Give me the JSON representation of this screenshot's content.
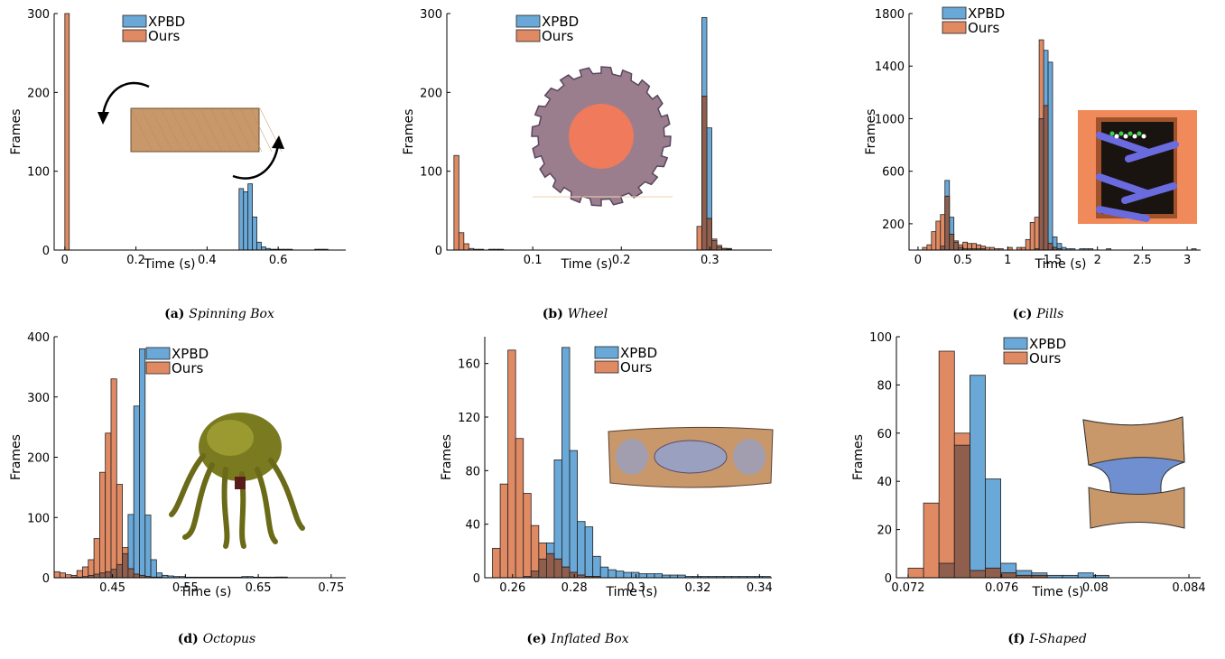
{
  "colors": {
    "xpbd": "#6aa8d8",
    "ours": "#e08a64",
    "overlap": "#8f5e4d",
    "edge": "#222222"
  },
  "chart_data": [
    {
      "id": "a",
      "type": "bar",
      "caption_label": "(a)",
      "caption_title": "Spinning Box",
      "xlabel": "Time (s)",
      "ylabel": "Frames",
      "xlim": [
        -0.03,
        0.79
      ],
      "ylim": [
        0,
        300
      ],
      "xticks": [
        0,
        0.2,
        0.4,
        0.6
      ],
      "xtick_labels": [
        "0",
        "0.2",
        "0.4",
        "0.6"
      ],
      "yticks": [
        0,
        100,
        200,
        300
      ],
      "ytick_labels": [
        "0",
        "100",
        "200",
        "300"
      ],
      "legend": [
        "XPBD",
        "Ours"
      ],
      "bin_start": 0.49,
      "bin_width": 0.0125,
      "xpbd": [
        78,
        74,
        84,
        42,
        10,
        4,
        2,
        1,
        1,
        1,
        1,
        1,
        0,
        0,
        0,
        0,
        0,
        1,
        1,
        1
      ],
      "ours_bin_start": 0.0,
      "ours_bin_width": 0.0125,
      "ours": [
        300
      ]
    },
    {
      "id": "b",
      "type": "bar",
      "caption_label": "(b)",
      "caption_title": "Wheel",
      "xlabel": "Time (s)",
      "ylabel": "Frames",
      "xlim": [
        0.003,
        0.37
      ],
      "ylim": [
        0,
        300
      ],
      "xticks": [
        0.1,
        0.2,
        0.3
      ],
      "xtick_labels": [
        "0.1",
        "0.2",
        "0.3"
      ],
      "yticks": [
        0,
        100,
        200,
        300
      ],
      "ytick_labels": [
        "0",
        "100",
        "200",
        "300"
      ],
      "legend": [
        "XPBD",
        "Ours"
      ],
      "bin_start": 0.011,
      "bin_width": 0.0056,
      "ours_full": [
        120,
        22,
        8,
        2,
        1,
        1,
        0,
        1,
        1,
        1,
        0,
        0,
        0,
        0,
        0,
        0,
        0,
        0,
        0,
        0,
        0,
        0,
        0,
        0,
        0,
        0,
        0,
        0,
        0,
        0,
        0,
        0,
        0,
        0,
        0,
        0,
        0,
        0,
        0,
        0,
        0,
        0,
        0,
        0,
        0,
        0,
        0,
        0,
        0,
        30,
        195,
        40,
        14,
        6,
        2,
        1
      ],
      "xpbd_full": [
        0,
        0,
        0,
        0,
        0,
        0,
        0,
        0,
        0,
        0,
        0,
        0,
        0,
        0,
        0,
        0,
        0,
        0,
        0,
        0,
        0,
        0,
        0,
        0,
        0,
        0,
        0,
        0,
        0,
        0,
        0,
        0,
        0,
        0,
        0,
        0,
        0,
        0,
        0,
        0,
        0,
        0,
        0,
        0,
        0,
        0,
        0,
        0,
        0,
        0,
        295,
        155,
        12,
        4,
        2,
        2
      ]
    },
    {
      "id": "c",
      "type": "bar",
      "caption_label": "(c)",
      "caption_title": "Pills",
      "xlabel": "Time (s)",
      "ylabel": "Frames",
      "xlim": [
        -0.1,
        3.15
      ],
      "ylim": [
        0,
        1800
      ],
      "xticks": [
        0,
        0.5,
        1,
        1.5,
        2,
        2.5,
        3
      ],
      "xtick_labels": [
        "0",
        "0.5",
        "1",
        "1.5",
        "2",
        "2.5",
        "3"
      ],
      "yticks": [
        200,
        600,
        1000,
        1400,
        1800
      ],
      "ytick_labels": [
        "200",
        "600",
        "1000",
        "1400",
        "1800"
      ],
      "legend": [
        "XPBD",
        "Ours"
      ],
      "bin_start": 0.0,
      "bin_width": 0.05,
      "ours": [
        0,
        20,
        40,
        140,
        220,
        270,
        410,
        120,
        70,
        40,
        60,
        50,
        50,
        40,
        30,
        20,
        20,
        10,
        10,
        0,
        20,
        0,
        20,
        20,
        80,
        210,
        250,
        1600,
        1100,
        50,
        20,
        10,
        0,
        0,
        0,
        0
      ],
      "xpbd": [
        0,
        0,
        0,
        0,
        0,
        30,
        530,
        250,
        60,
        20,
        10,
        10,
        10,
        10,
        10,
        0,
        0,
        0,
        0,
        0,
        0,
        0,
        0,
        0,
        0,
        0,
        10,
        1000,
        1520,
        1430,
        100,
        50,
        20,
        10,
        10,
        0,
        10,
        10,
        10,
        0,
        0,
        0,
        10,
        0,
        0,
        0,
        0,
        0,
        0,
        0,
        0,
        0,
        0,
        0,
        0,
        0,
        0,
        0,
        0,
        0,
        0,
        10
      ]
    },
    {
      "id": "d",
      "type": "bar",
      "caption_label": "(d)",
      "caption_title": "Octopus",
      "xlabel": "Time (s)",
      "ylabel": "Frames",
      "xlim": [
        0.37,
        0.77
      ],
      "ylim": [
        0,
        400
      ],
      "xticks": [
        0.45,
        0.55,
        0.65,
        0.75
      ],
      "xtick_labels": [
        "0.45",
        "0.55",
        "0.65",
        "0.75"
      ],
      "yticks": [
        0,
        100,
        200,
        300,
        400
      ],
      "ytick_labels": [
        "0",
        "100",
        "200",
        "300",
        "400"
      ],
      "legend": [
        "XPBD",
        "Ours"
      ],
      "bin_start": 0.37,
      "bin_width": 0.0078,
      "ours": [
        10,
        8,
        5,
        4,
        12,
        18,
        30,
        65,
        175,
        240,
        330,
        155,
        50,
        15,
        6,
        4,
        2,
        1,
        1,
        0,
        0,
        0,
        0,
        0,
        0,
        0,
        0,
        0,
        0,
        0,
        0,
        0,
        0,
        0,
        0,
        0,
        0,
        0,
        0,
        1,
        1
      ],
      "xpbd": [
        0,
        0,
        0,
        1,
        1,
        2,
        4,
        6,
        8,
        10,
        14,
        22,
        40,
        105,
        285,
        380,
        104,
        30,
        8,
        4,
        3,
        2,
        2,
        1,
        1,
        1,
        1,
        1,
        1,
        1,
        1,
        1,
        1,
        2,
        2,
        1,
        1,
        1,
        1,
        1,
        1
      ]
    },
    {
      "id": "e",
      "type": "bar",
      "caption_label": "(e)",
      "caption_title": "Inflated Box",
      "xlabel": "Time (s)",
      "ylabel": "Frames",
      "xlim": [
        0.251,
        0.344
      ],
      "ylim": [
        0,
        180
      ],
      "xticks": [
        0.26,
        0.28,
        0.3,
        0.32,
        0.34
      ],
      "xtick_labels": [
        "0.26",
        "0.28",
        "0.3",
        "0.32",
        "0.34"
      ],
      "yticks": [
        0,
        40,
        80,
        120,
        160
      ],
      "ytick_labels": [
        "0",
        "40",
        "80",
        "120",
        "160"
      ],
      "legend": [
        "XPBD",
        "Ours"
      ],
      "bin_start": 0.2535,
      "bin_width": 0.0025,
      "ours": [
        22,
        70,
        170,
        104,
        63,
        39,
        26,
        18,
        14,
        8,
        4,
        2,
        1,
        1,
        0,
        0,
        0,
        0,
        0,
        0,
        0,
        0,
        0,
        0,
        0,
        0,
        0,
        0,
        0,
        0,
        0,
        0,
        0,
        0,
        0,
        0
      ],
      "xpbd": [
        0,
        0,
        0,
        0,
        1,
        5,
        14,
        26,
        88,
        172,
        95,
        42,
        38,
        16,
        8,
        6,
        5,
        4,
        4,
        3,
        3,
        3,
        2,
        2,
        2,
        1,
        1,
        1,
        1,
        1,
        1,
        1,
        1,
        1,
        1,
        1
      ]
    },
    {
      "id": "f",
      "type": "bar",
      "caption_label": "(f)",
      "caption_title": "I-Shaped",
      "xlabel": "Time (s)",
      "ylabel": "Frames",
      "xlim": [
        0.0715,
        0.0845
      ],
      "ylim": [
        0,
        100
      ],
      "xticks": [
        0.072,
        0.076,
        0.08,
        0.084
      ],
      "xtick_labels": [
        "0.072",
        "0.076",
        "0.08",
        "0.084"
      ],
      "yticks": [
        0,
        20,
        40,
        60,
        80,
        100
      ],
      "ytick_labels": [
        "0",
        "20",
        "40",
        "60",
        "80",
        "100"
      ],
      "legend": [
        "XPBD",
        "Ours"
      ],
      "bin_start": 0.072,
      "bin_width": 0.00066,
      "ours": [
        4,
        31,
        94,
        60,
        3,
        4,
        2,
        1,
        1,
        0,
        0,
        0,
        0
      ],
      "xpbd": [
        0,
        0,
        6,
        55,
        84,
        41,
        6,
        3,
        2,
        1,
        1,
        2,
        1
      ]
    }
  ]
}
